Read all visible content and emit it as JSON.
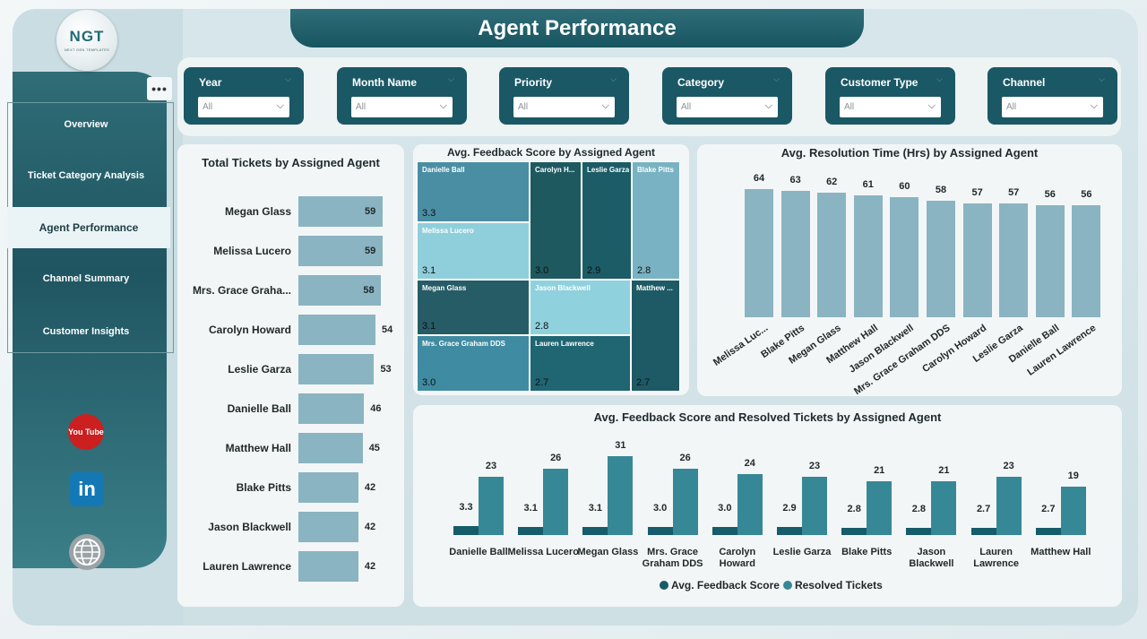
{
  "header": {
    "title": "Agent Performance"
  },
  "logo": {
    "text": "NGT",
    "subtext": "NEXT GEN TEMPLATES"
  },
  "sidebar": {
    "more_label": "•••",
    "items": [
      {
        "label": "Overview",
        "active": false
      },
      {
        "label": "Ticket Category Analysis",
        "active": false
      },
      {
        "label": "Agent Performance",
        "active": true
      },
      {
        "label": "Channel Summary",
        "active": false
      },
      {
        "label": "Customer Insights",
        "active": false
      }
    ],
    "social": {
      "youtube": "You Tube",
      "linkedin": "in",
      "web_icon": "globe-icon"
    }
  },
  "filters": [
    {
      "label": "Year",
      "value": "All"
    },
    {
      "label": "Month Name",
      "value": "All"
    },
    {
      "label": "Priority",
      "value": "All"
    },
    {
      "label": "Category",
      "value": "All"
    },
    {
      "label": "Customer Type",
      "value": "All"
    },
    {
      "label": "Channel",
      "value": "All"
    }
  ],
  "colors": {
    "primary": "#1b5865",
    "bar_light": "#8ab4c1",
    "feedback": "#165c6a",
    "resolved": "#378896"
  },
  "chart_data": [
    {
      "type": "bar",
      "orientation": "horizontal",
      "title": "Total Tickets by Assigned Agent",
      "categories": [
        "Megan Glass",
        "Melissa Lucero",
        "Mrs. Grace Graha...",
        "Carolyn Howard",
        "Leslie Garza",
        "Danielle Ball",
        "Matthew Hall",
        "Blake Pitts",
        "Jason Blackwell",
        "Lauren Lawrence"
      ],
      "values": [
        59,
        59,
        58,
        54,
        53,
        46,
        45,
        42,
        42,
        42
      ]
    },
    {
      "type": "treemap",
      "title": "Avg. Feedback Score by Assigned Agent",
      "items": [
        {
          "name": "Danielle Ball",
          "value": "3.3"
        },
        {
          "name": "Melissa Lucero",
          "value": "3.1"
        },
        {
          "name": "Carolyn H...",
          "value": "3.0"
        },
        {
          "name": "Leslie Garza",
          "value": "2.9"
        },
        {
          "name": "Blake Pitts",
          "value": "2.8"
        },
        {
          "name": "Megan Glass",
          "value": "3.1"
        },
        {
          "name": "Jason Blackwell",
          "value": "2.8"
        },
        {
          "name": "Matthew ...",
          "value": "2.7"
        },
        {
          "name": "Mrs. Grace Graham DDS",
          "value": "3.0"
        },
        {
          "name": "Lauren Lawrence",
          "value": "2.7"
        }
      ]
    },
    {
      "type": "bar",
      "title": "Avg. Resolution Time (Hrs) by Assigned Agent",
      "categories": [
        "Melissa Luc...",
        "Blake Pitts",
        "Megan Glass",
        "Matthew Hall",
        "Jason Blackwell",
        "Mrs. Grace Graham DDS",
        "Carolyn Howard",
        "Leslie Garza",
        "Danielle Ball",
        "Lauren Lawrence"
      ],
      "values": [
        64,
        63,
        62,
        61,
        60,
        58,
        57,
        57,
        56,
        56
      ]
    },
    {
      "type": "bar",
      "title": "Avg. Feedback Score and Resolved Tickets by Assigned Agent",
      "categories": [
        "Danielle Ball",
        "Melissa Lucero",
        "Megan Glass",
        "Mrs. Grace Graham DDS",
        "Carolyn Howard",
        "Leslie Garza",
        "Blake Pitts",
        "Jason Blackwell",
        "Lauren Lawrence",
        "Matthew Hall"
      ],
      "series": [
        {
          "name": "Avg. Feedback Score",
          "values": [
            3.3,
            3.1,
            3.1,
            3.0,
            3.0,
            2.9,
            2.8,
            2.8,
            2.7,
            2.7
          ],
          "labels": [
            "3.3",
            "3.1",
            "3.1",
            "3.0",
            "3.0",
            "2.9",
            "2.8",
            "2.8",
            "2.7",
            "2.7"
          ]
        },
        {
          "name": "Resolved Tickets",
          "values": [
            23,
            26,
            31,
            26,
            24,
            23,
            21,
            21,
            23,
            19
          ]
        }
      ],
      "legend": "bottom"
    }
  ]
}
